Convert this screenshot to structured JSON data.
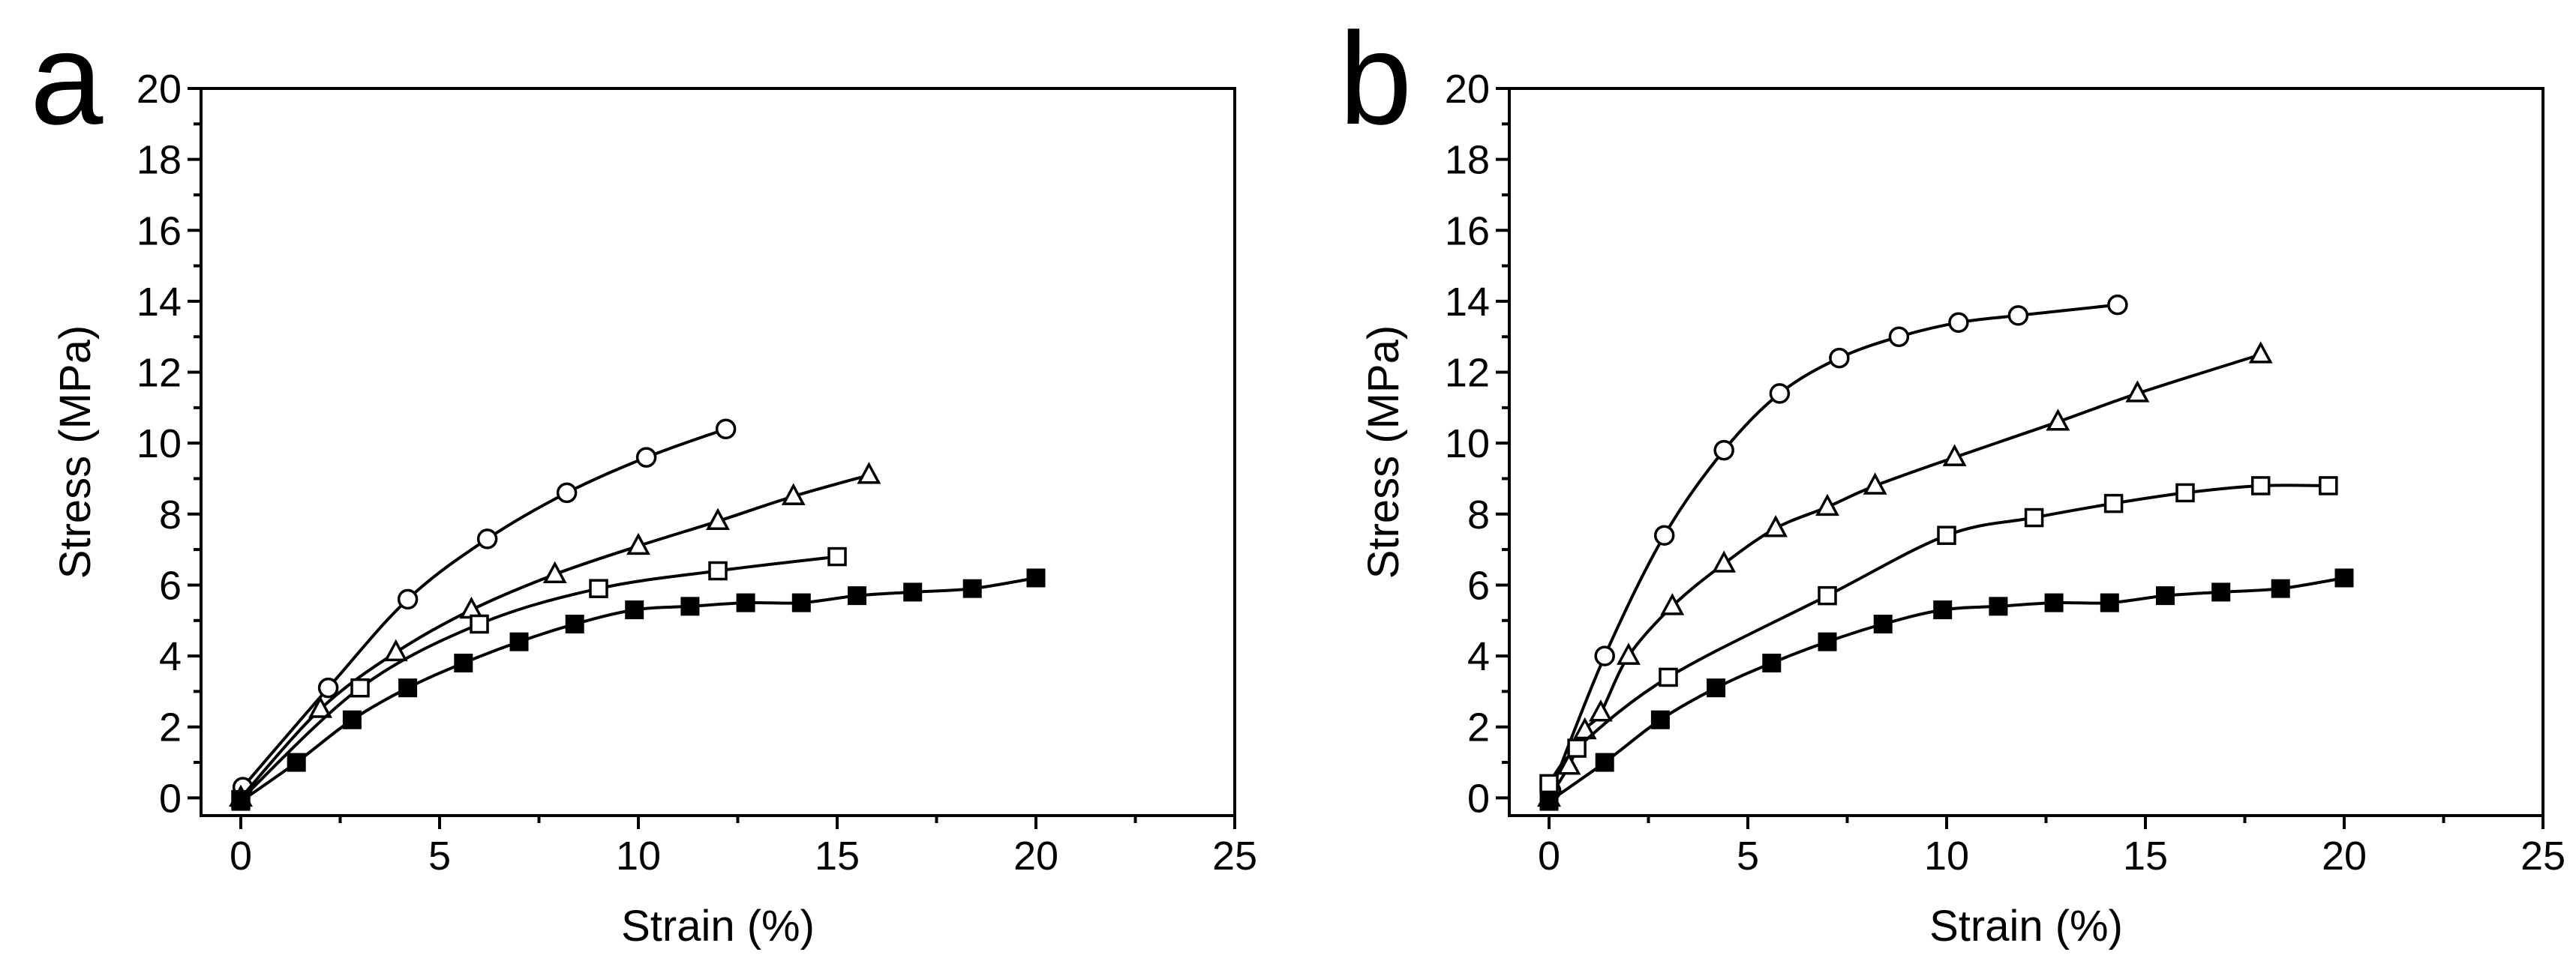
{
  "chart_data": [
    {
      "type": "line",
      "panel_label": "a",
      "xlabel": "Strain (%)",
      "ylabel": "Stress (MPa)",
      "xlim": [
        -1,
        25
      ],
      "ylim": [
        -0.5,
        20
      ],
      "x_ticks": [
        0,
        5,
        10,
        15,
        20,
        25
      ],
      "x_tick_labels": [
        "0",
        "5",
        "10",
        "15",
        "20",
        "25"
      ],
      "y_ticks": [
        0,
        2,
        4,
        6,
        8,
        10,
        12,
        14,
        16,
        18,
        20
      ],
      "y_tick_labels": [
        "0",
        "2",
        "4",
        "6",
        "8",
        "10",
        "12",
        "14",
        "16",
        "18",
        "20"
      ],
      "grid": false,
      "series": [
        {
          "name": "circle",
          "marker": "circle-open",
          "x": [
            0.05,
            2.2,
            4.2,
            6.2,
            8.2,
            10.2,
            12.2
          ],
          "y": [
            0.3,
            3.1,
            5.6,
            7.3,
            8.6,
            9.6,
            10.4
          ]
        },
        {
          "name": "triangle",
          "marker": "triangle-open",
          "x": [
            0,
            2.0,
            3.9,
            5.8,
            7.9,
            10.0,
            12.0,
            13.9,
            15.8
          ],
          "y": [
            0.0,
            2.5,
            4.1,
            5.3,
            6.3,
            7.1,
            7.8,
            8.5,
            9.1
          ]
        },
        {
          "name": "square-open",
          "marker": "square-open",
          "x": [
            0,
            3.0,
            6.0,
            9.0,
            12.0,
            15.0
          ],
          "y": [
            -0.05,
            3.1,
            4.9,
            5.9,
            6.4,
            6.8
          ]
        },
        {
          "name": "square-filled",
          "marker": "square-filled",
          "x": [
            0,
            1.4,
            2.8,
            4.2,
            5.6,
            7.0,
            8.4,
            9.9,
            11.3,
            12.7,
            14.1,
            15.5,
            16.9,
            18.4,
            20.0
          ],
          "y": [
            -0.1,
            1.0,
            2.2,
            3.1,
            3.8,
            4.4,
            4.9,
            5.3,
            5.4,
            5.5,
            5.5,
            5.7,
            5.8,
            5.9,
            6.2
          ]
        }
      ]
    },
    {
      "type": "line",
      "panel_label": "b",
      "xlabel": "Strain (%)",
      "ylabel": "Stress (MPa)",
      "xlim": [
        -1,
        25
      ],
      "ylim": [
        -0.5,
        20
      ],
      "x_ticks": [
        0,
        5,
        10,
        15,
        20,
        25
      ],
      "x_tick_labels": [
        "0",
        "5",
        "10",
        "15",
        "20",
        "25"
      ],
      "y_ticks": [
        0,
        2,
        4,
        6,
        8,
        10,
        12,
        14,
        16,
        18,
        20
      ],
      "y_tick_labels": [
        "0",
        "2",
        "4",
        "6",
        "8",
        "10",
        "12",
        "14",
        "16",
        "18",
        "20"
      ],
      "grid": false,
      "series": [
        {
          "name": "circle",
          "marker": "circle-open",
          "x": [
            0.05,
            1.4,
            2.9,
            4.4,
            5.8,
            7.3,
            8.8,
            10.3,
            11.8,
            14.3
          ],
          "y": [
            0.2,
            4.0,
            7.4,
            9.8,
            11.4,
            12.4,
            13.0,
            13.4,
            13.6,
            13.9
          ]
        },
        {
          "name": "triangle",
          "marker": "triangle-open",
          "x": [
            0,
            0.5,
            0.9,
            1.3,
            2.0,
            3.1,
            4.4,
            5.7,
            7.0,
            8.2,
            10.2,
            12.8,
            14.8,
            17.9
          ],
          "y": [
            0.0,
            0.9,
            1.9,
            2.4,
            4.0,
            5.4,
            6.6,
            7.6,
            8.2,
            8.8,
            9.6,
            10.6,
            11.4,
            12.5
          ]
        },
        {
          "name": "square-open",
          "marker": "square-open",
          "x": [
            0,
            0.7,
            3.0,
            7.0,
            10.0,
            12.2,
            14.2,
            16.0,
            17.9,
            19.6
          ],
          "y": [
            0.4,
            1.4,
            3.4,
            5.7,
            7.4,
            7.9,
            8.3,
            8.6,
            8.8,
            8.8
          ]
        },
        {
          "name": "square-filled",
          "marker": "square-filled",
          "x": [
            0,
            1.4,
            2.8,
            4.2,
            5.6,
            7.0,
            8.4,
            9.9,
            11.3,
            12.7,
            14.1,
            15.5,
            16.9,
            18.4,
            20.0
          ],
          "y": [
            -0.1,
            1.0,
            2.2,
            3.1,
            3.8,
            4.4,
            4.9,
            5.3,
            5.4,
            5.5,
            5.5,
            5.7,
            5.8,
            5.9,
            6.2
          ]
        }
      ]
    }
  ]
}
